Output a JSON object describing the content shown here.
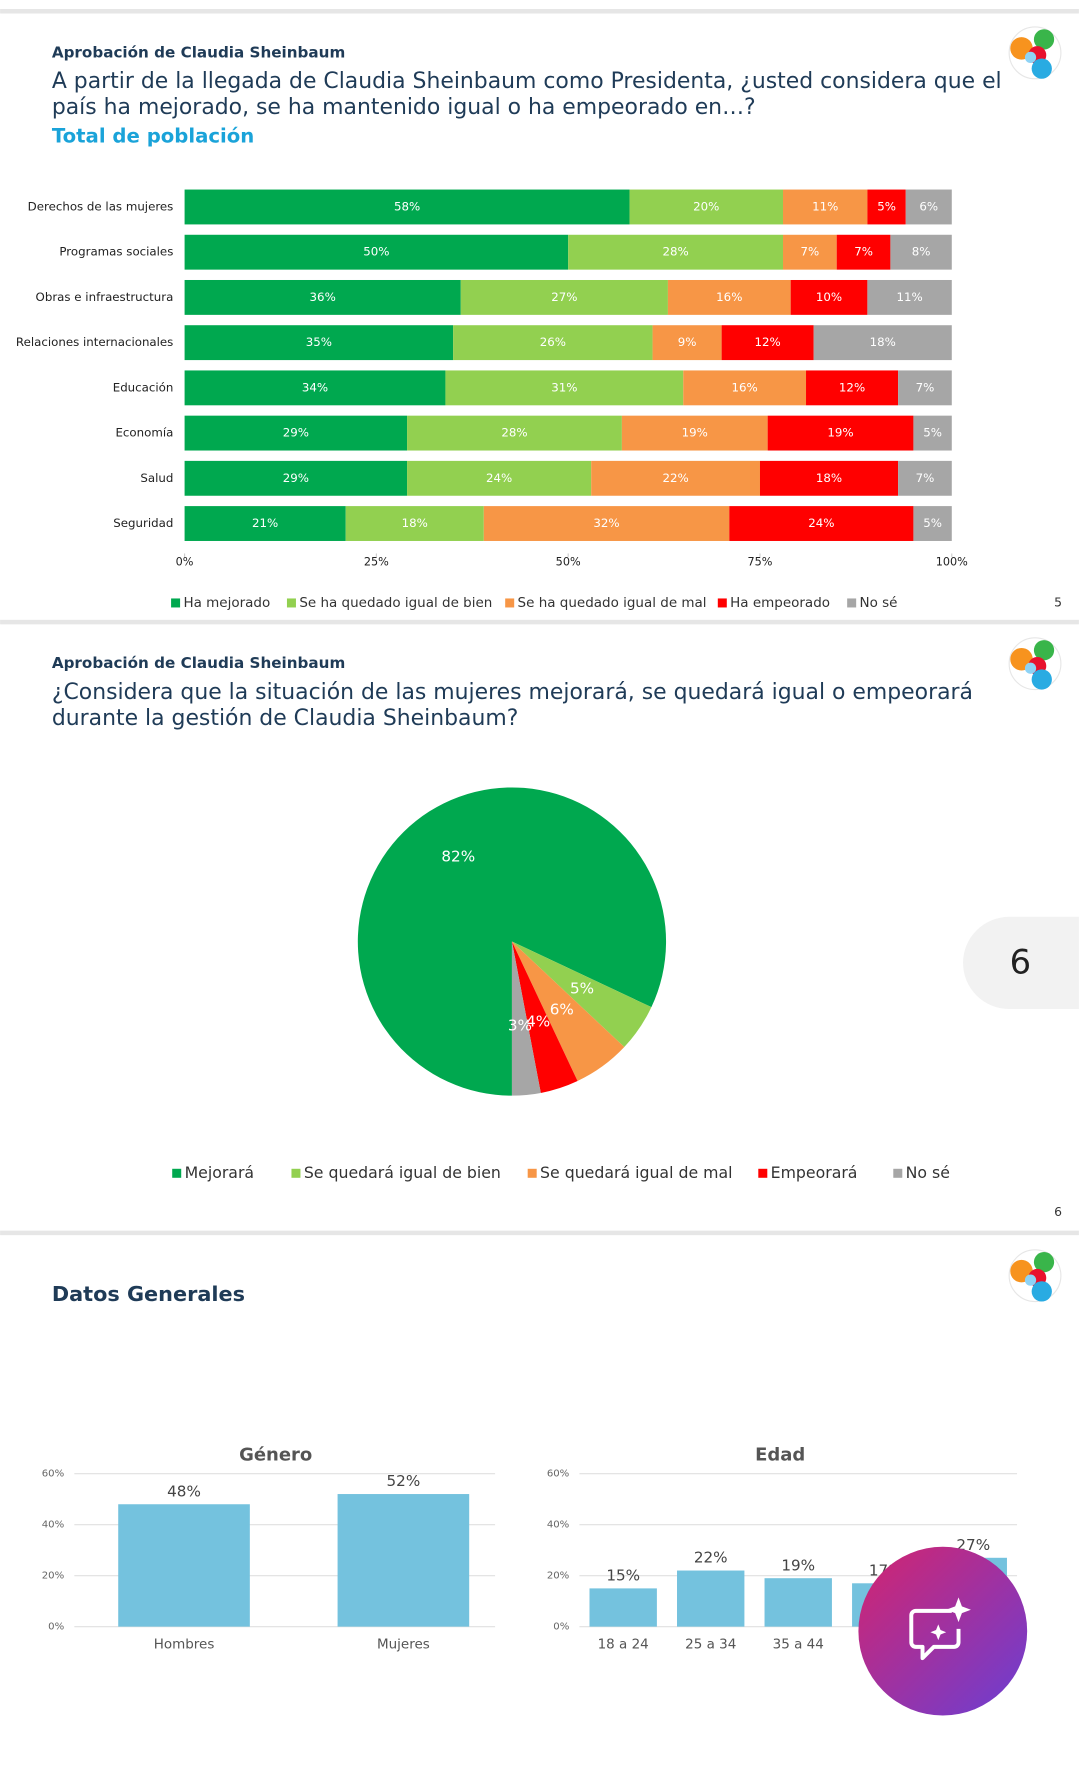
{
  "slides": [
    {
      "header": "Aprobación de Claudia Sheinbaum",
      "question_lines": [
        "A partir de la llegada de Claudia Sheinbaum como Presidenta, ¿usted considera que el",
        "país ha mejorado, se ha mantenido igual o ha empeorado en…?"
      ],
      "subheader": "Total de población",
      "page": "5"
    },
    {
      "header": "Aprobación de Claudia Sheinbaum",
      "question_lines": [
        "¿Considera que la situación de las mujeres mejorará, se quedará igual o empeorará",
        "durante la gestión de Claudia Sheinbaum?"
      ],
      "page": "6"
    },
    {
      "header": "Datos Generales"
    }
  ],
  "page_indicator": "6",
  "chart_data": [
    {
      "type": "bar",
      "orientation": "horizontal",
      "stacked": true,
      "categories": [
        "Derechos de las mujeres",
        "Programas sociales",
        "Obras e infraestructura",
        "Relaciones internacionales",
        "Educación",
        "Economía",
        "Salud",
        "Seguridad"
      ],
      "series": [
        {
          "name": "Ha mejorado",
          "color": "#00a84f",
          "values": [
            58,
            50,
            36,
            35,
            34,
            29,
            29,
            21
          ],
          "value_labels": [
            "58%",
            "50%",
            "36%",
            "35%",
            "34%",
            "29%",
            "29%",
            "21%"
          ]
        },
        {
          "name": "Se ha quedado igual de bien",
          "color": "#92d050",
          "values": [
            20,
            28,
            27,
            26,
            31,
            28,
            24,
            18
          ],
          "value_labels": [
            "20%",
            "28%",
            "27%",
            "26%",
            "31%",
            "28%",
            "24%",
            "18%"
          ]
        },
        {
          "name": "Se ha quedado igual de mal",
          "color": "#f79646",
          "values": [
            11,
            7,
            16,
            9,
            16,
            19,
            22,
            32
          ],
          "value_labels": [
            "11%",
            "7%",
            "16%",
            "9%",
            "16%",
            "19%",
            "22%",
            "32%"
          ]
        },
        {
          "name": "Ha empeorado",
          "color": "#ff0000",
          "values": [
            5,
            7,
            10,
            12,
            12,
            19,
            18,
            24
          ],
          "value_labels": [
            "5%",
            "7%",
            "10%",
            "12%",
            "12%",
            "19%",
            "18%",
            "24%"
          ]
        },
        {
          "name": "No sé",
          "color": "#a6a6a6",
          "values": [
            6,
            8,
            11,
            18,
            7,
            5,
            7,
            5
          ],
          "value_labels": [
            "6%",
            "8%",
            "11%",
            "18%",
            "7%",
            "5%",
            "7%",
            "5%"
          ]
        }
      ],
      "xlim": [
        0,
        100
      ],
      "xticks": [
        {
          "value": 0,
          "label": "0%"
        },
        {
          "value": 25,
          "label": "25%"
        },
        {
          "value": 50,
          "label": "50%"
        },
        {
          "value": 75,
          "label": "75%"
        },
        {
          "value": 100,
          "label": "100%"
        }
      ],
      "legend": "bottom"
    },
    {
      "type": "pie",
      "categories": [
        "Mejorará",
        "Se quedará igual de bien",
        "Se quedará igual de mal",
        "Empeorará",
        "No sé"
      ],
      "values": [
        82,
        5,
        6,
        4,
        3
      ],
      "value_labels": [
        "82%",
        "5%",
        "6%",
        "4%",
        "3%"
      ],
      "colors": [
        "#00a84f",
        "#92d050",
        "#f79646",
        "#ff0000",
        "#a6a6a6"
      ],
      "legend": "bottom"
    },
    {
      "type": "bar",
      "title": "Género",
      "categories": [
        "Hombres",
        "Mujeres"
      ],
      "values": [
        48,
        52
      ],
      "value_labels": [
        "48%",
        "52%"
      ],
      "color": "#74c2de",
      "ylim": [
        0,
        60
      ],
      "yticks": [
        {
          "value": 0,
          "label": "0%"
        },
        {
          "value": 20,
          "label": "20%"
        },
        {
          "value": 40,
          "label": "40%"
        },
        {
          "value": 60,
          "label": "60%"
        }
      ],
      "grid": true
    },
    {
      "type": "bar",
      "title": "Edad",
      "categories": [
        "18 a 24",
        "25 a 34",
        "35 a 44",
        null,
        null
      ],
      "values": [
        15,
        22,
        19,
        17,
        27
      ],
      "value_labels": [
        "15%",
        "22%",
        "19%",
        "17%",
        "27%"
      ],
      "color": "#74c2de",
      "ylim": [
        0,
        60
      ],
      "yticks": [
        {
          "value": 0,
          "label": "0%"
        },
        {
          "value": 20,
          "label": "20%"
        },
        {
          "value": 40,
          "label": "40%"
        },
        {
          "value": 60,
          "label": "60%"
        }
      ],
      "grid": true
    }
  ]
}
